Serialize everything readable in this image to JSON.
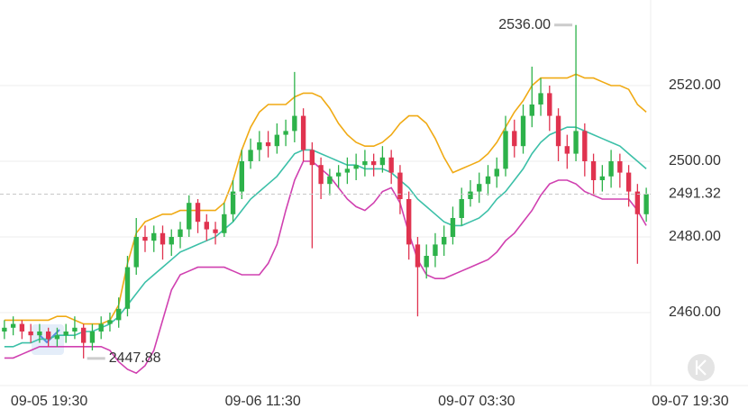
{
  "chart_data": {
    "type": "candlestick",
    "xlim": [
      -0.5,
      73.5
    ],
    "xticks": [
      {
        "value": 5.1,
        "label": "09-05 19:30"
      },
      {
        "value": 29.4,
        "label": "09-06 11:30"
      },
      {
        "value": 53.7,
        "label": "09-07 03:30"
      },
      {
        "value": 78.0,
        "label": "09-07 19:30"
      }
    ],
    "ylim": [
      2440.71,
      2542.62
    ],
    "yticks": [
      {
        "value": 2460,
        "label": "2460.00"
      },
      {
        "value": 2480,
        "label": "2480.00"
      },
      {
        "value": 2500,
        "label": "2500.00"
      },
      {
        "value": 2520,
        "label": "2520.00"
      }
    ],
    "grid": true,
    "up_color": "#2db24a",
    "down_color": "#e0334f",
    "open": [
      2455,
      2456,
      2457,
      2455,
      2454,
      2455,
      2453,
      2454,
      2455,
      2456,
      2452,
      2455,
      2457,
      2458,
      2461,
      2472,
      2480,
      2479,
      2481,
      2478,
      2480,
      2482,
      2489,
      2484,
      2482,
      2481,
      2486,
      2492,
      2500,
      2503,
      2505,
      2504,
      2507,
      2508,
      2512,
      2503,
      2499,
      2494,
      2496,
      2497,
      2498,
      2499,
      2500,
      2499,
      2501,
      2497,
      2490,
      2478,
      2472,
      2475,
      2478,
      2480,
      2485,
      2490,
      2492,
      2494,
      2496,
      2498,
      2508,
      2504,
      2512,
      2515,
      2518,
      2512,
      2504,
      2502,
      2508,
      2500,
      2495,
      2496,
      2500,
      2497,
      2492,
      2486
    ],
    "high": [
      2458,
      2459,
      2458,
      2457,
      2457,
      2456,
      2456,
      2457,
      2459,
      2457,
      2457,
      2459,
      2460,
      2464,
      2475,
      2485,
      2483,
      2483,
      2483,
      2482,
      2484,
      2491,
      2490,
      2486,
      2484,
      2489,
      2495,
      2503,
      2506,
      2508,
      2508,
      2510,
      2511,
      2523.6,
      2514,
      2505,
      2501,
      2498,
      2499,
      2501,
      2502,
      2503,
      2502,
      2504,
      2503,
      2499,
      2492,
      2480,
      2478,
      2481,
      2483,
      2488,
      2493,
      2495,
      2497,
      2499,
      2501,
      2512,
      2511,
      2515,
      2525,
      2522,
      2520,
      2514,
      2507,
      2536,
      2510,
      2502,
      2499,
      2503,
      2502,
      2499,
      2494,
      2493
    ],
    "low": [
      2453,
      2454,
      2453,
      2452,
      2452,
      2451,
      2451,
      2452,
      2453,
      2447.88,
      2450,
      2453,
      2455,
      2456,
      2459,
      2470,
      2476,
      2476,
      2474,
      2475,
      2477,
      2480,
      2481,
      2479,
      2478,
      2480,
      2484,
      2490,
      2498,
      2500,
      2501,
      2502,
      2504,
      2505,
      2500,
      2477,
      2490,
      2491,
      2493,
      2494,
      2495,
      2496,
      2496,
      2497,
      2494,
      2486,
      2474,
      2459,
      2469,
      2472,
      2475,
      2478,
      2483,
      2488,
      2489,
      2491,
      2493,
      2496,
      2501,
      2502,
      2509,
      2512,
      2508,
      2500,
      2498,
      2500,
      2496,
      2491,
      2492,
      2493,
      2493,
      2488,
      2472.9,
      2484
    ],
    "close": [
      2456,
      2457,
      2455,
      2454,
      2455,
      2453,
      2454,
      2455,
      2456,
      2452,
      2455,
      2457,
      2458,
      2461,
      2472,
      2480,
      2479,
      2481,
      2478,
      2480,
      2482,
      2489,
      2484,
      2482,
      2481,
      2486,
      2492,
      2500,
      2503,
      2505,
      2504,
      2507,
      2508,
      2512,
      2503,
      2499,
      2494,
      2496,
      2497,
      2498,
      2499,
      2500,
      2499,
      2501,
      2497,
      2490,
      2478,
      2472,
      2475,
      2478,
      2480,
      2485,
      2490,
      2492,
      2494,
      2496,
      2498,
      2508,
      2504,
      2512,
      2515,
      2518,
      2512,
      2504,
      2502,
      2508,
      2500,
      2495,
      2496,
      2500,
      2497,
      2492,
      2486,
      2491.32
    ],
    "bands": [
      {
        "color": "#f0aa14",
        "values": [
          2458,
          2458,
          2458,
          2458,
          2458,
          2458,
          2459,
          2459,
          2458,
          2457,
          2457,
          2457,
          2458,
          2462,
          2473,
          2481,
          2484,
          2485,
          2486,
          2486,
          2487,
          2487,
          2487,
          2487,
          2487,
          2489,
          2495,
          2503,
          2509,
          2513,
          2515,
          2515,
          2515,
          2517,
          2518,
          2518,
          2517,
          2514,
          2510,
          2507,
          2505,
          2504,
          2504,
          2505,
          2507,
          2510,
          2512,
          2512,
          2510,
          2506,
          2501,
          2497,
          2498,
          2499,
          2500,
          2502,
          2505,
          2509,
          2513,
          2516,
          2520,
          2522,
          2522,
          2522,
          2522,
          2523,
          2522,
          2522,
          2521,
          2520,
          2520,
          2519,
          2515,
          2513
        ]
      },
      {
        "color": "#3cc0a8",
        "values": [
          2451,
          2451,
          2452,
          2452,
          2453,
          2453,
          2454,
          2454,
          2454,
          2455,
          2455,
          2456,
          2457,
          2459,
          2462,
          2465,
          2468,
          2470,
          2472,
          2474,
          2476,
          2477,
          2478,
          2479,
          2480,
          2482,
          2484,
          2487,
          2490,
          2492,
          2494,
          2496,
          2499,
          2502,
          2503,
          2503,
          2502,
          2501,
          2500,
          2499,
          2499,
          2498,
          2498,
          2498,
          2497,
          2495,
          2493,
          2490,
          2488,
          2486,
          2484,
          2483,
          2483,
          2484,
          2485,
          2487,
          2490,
          2492,
          2495,
          2498,
          2502,
          2505,
          2507,
          2508,
          2509,
          2509,
          2508,
          2507,
          2506,
          2505,
          2504,
          2502,
          2500,
          2498
        ]
      },
      {
        "color": "#d040b0",
        "values": [
          2448,
          2448,
          2449,
          2450,
          2451,
          2451,
          2451,
          2451,
          2451,
          2451,
          2451,
          2451,
          2450,
          2447,
          2445,
          2444,
          2446,
          2450,
          2458,
          2466,
          2470,
          2471,
          2472,
          2472,
          2472,
          2472,
          2471,
          2470,
          2470,
          2470,
          2473,
          2478,
          2487,
          2495,
          2500,
          2500,
          2498,
          2496,
          2493,
          2490,
          2488,
          2487,
          2489,
          2492,
          2493,
          2489,
          2481,
          2474,
          2470,
          2469,
          2469,
          2470,
          2471,
          2472,
          2473,
          2474,
          2476,
          2479,
          2481,
          2484,
          2487,
          2491,
          2494,
          2495,
          2495,
          2494,
          2492,
          2491,
          2490,
          2490,
          2490,
          2490,
          2487,
          2483
        ]
      }
    ],
    "extremes": [
      {
        "value": 2536,
        "label": "2536.00"
      },
      {
        "value": 2447.88,
        "label": "2447.88"
      }
    ],
    "last_color": "#2db24a"
  }
}
